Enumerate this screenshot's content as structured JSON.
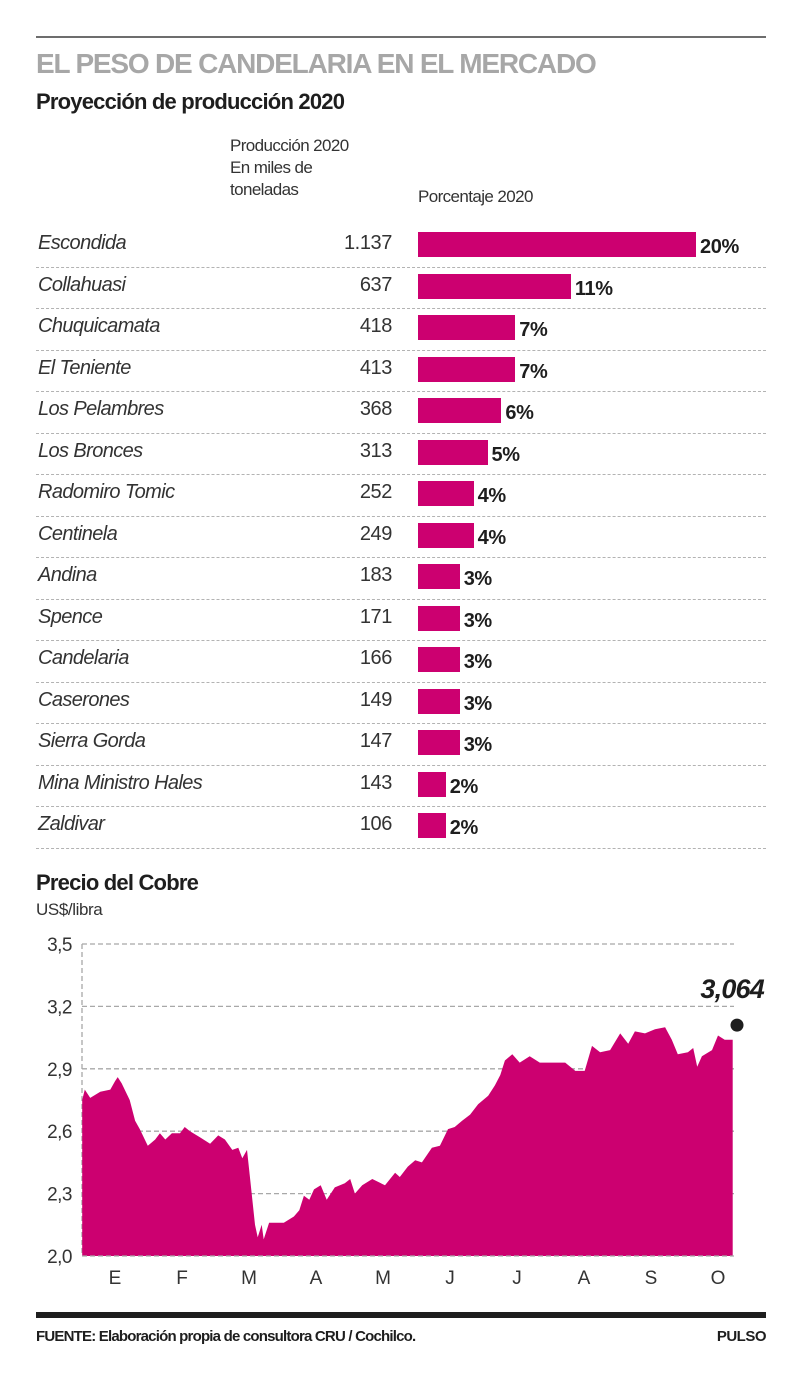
{
  "header": {
    "title": "EL PESO DE CANDELARIA EN EL MERCADO",
    "subtitle": "Proyección de producción 2020"
  },
  "chart_data": [
    {
      "type": "bar",
      "title": "Proyección de producción 2020",
      "column_headers": {
        "production": [
          "Producción 2020",
          "En miles de",
          "toneladas"
        ],
        "percentage": "Porcentaje 2020"
      },
      "categories": [
        "Escondida",
        "Collahuasi",
        "Chuquicamata",
        "El Teniente",
        "Los Pelambres",
        "Los Bronces",
        "Radomiro Tomic",
        "Centinela",
        "Andina",
        "Spence",
        "Candelaria",
        "Caserones",
        "Sierra Gorda",
        "Mina Ministro Hales",
        "Zaldivar"
      ],
      "production_labels": [
        "1.137",
        "637",
        "418",
        "413",
        "368",
        "313",
        "252",
        "249",
        "183",
        "171",
        "166",
        "149",
        "147",
        "143",
        "106"
      ],
      "production_values": [
        1137,
        637,
        418,
        413,
        368,
        313,
        252,
        249,
        183,
        171,
        166,
        149,
        147,
        143,
        106
      ],
      "percent_labels": [
        "20%",
        "11%",
        "7%",
        "7%",
        "6%",
        "5%",
        "4%",
        "4%",
        "3%",
        "3%",
        "3%",
        "3%",
        "3%",
        "2%",
        "2%"
      ],
      "values": [
        20,
        11,
        7,
        7,
        6,
        5,
        4,
        4,
        3,
        3,
        3,
        3,
        3,
        2,
        2
      ],
      "bar_color": "#cc0070"
    },
    {
      "type": "area",
      "title": "Precio del Cobre",
      "ylabel": "US$/libra",
      "ylim": [
        2.0,
        3.5
      ],
      "yticks": [
        2.0,
        2.3,
        2.6,
        2.9,
        3.2,
        3.5
      ],
      "ytick_labels": [
        "2,0",
        "2,3",
        "2,6",
        "2,9",
        "3,2",
        "3,5"
      ],
      "xtick_labels": [
        "E",
        "F",
        "M",
        "A",
        "M",
        "J",
        "J",
        "A",
        "S",
        "O"
      ],
      "xlim": [
        -0.49,
        9.22
      ],
      "grid": true,
      "fill_color": "#cc0070",
      "last_value_label": "3,064",
      "last_value": 3.064,
      "x": [
        -0.49,
        -0.45,
        -0.37,
        -0.22,
        -0.07,
        0,
        0.04,
        0.1,
        0.22,
        0.3,
        0.37,
        0.49,
        0.6,
        0.67,
        0.75,
        0.85,
        0.97,
        1.04,
        1.12,
        1.27,
        1.42,
        1.54,
        1.64,
        1.75,
        1.84,
        1.9,
        1.97,
        2.01,
        2.09,
        2.13,
        2.19,
        2.22,
        2.3,
        2.52,
        2.67,
        2.75,
        2.82,
        2.9,
        2.97,
        3.07,
        3.16,
        3.28,
        3.43,
        3.51,
        3.58,
        3.69,
        3.84,
        4.03,
        4.18,
        4.25,
        4.37,
        4.48,
        4.58,
        4.73,
        4.85,
        4.97,
        5.07,
        5.18,
        5.3,
        5.42,
        5.57,
        5.67,
        5.75,
        5.82,
        5.93,
        6.04,
        6.19,
        6.34,
        6.49,
        6.72,
        6.87,
        7.01,
        7.12,
        7.24,
        7.39,
        7.54,
        7.66,
        7.76,
        7.91,
        8.06,
        8.21,
        8.31,
        8.4,
        8.55,
        8.63,
        8.69,
        8.76,
        8.91,
        9,
        9.1,
        9.22
      ],
      "y": [
        2.75,
        2.8,
        2.76,
        2.79,
        2.8,
        2.84,
        2.86,
        2.83,
        2.75,
        2.65,
        2.61,
        2.53,
        2.56,
        2.59,
        2.56,
        2.59,
        2.59,
        2.62,
        2.6,
        2.57,
        2.54,
        2.58,
        2.56,
        2.51,
        2.52,
        2.47,
        2.51,
        2.39,
        2.15,
        2.09,
        2.15,
        2.08,
        2.16,
        2.16,
        2.19,
        2.22,
        2.29,
        2.27,
        2.32,
        2.34,
        2.27,
        2.33,
        2.35,
        2.37,
        2.3,
        2.34,
        2.37,
        2.34,
        2.4,
        2.38,
        2.43,
        2.46,
        2.45,
        2.52,
        2.53,
        2.61,
        2.62,
        2.65,
        2.68,
        2.73,
        2.77,
        2.82,
        2.87,
        2.94,
        2.97,
        2.93,
        2.96,
        2.93,
        2.93,
        2.93,
        2.89,
        2.89,
        3.01,
        2.98,
        2.99,
        3.07,
        3.02,
        3.08,
        3.07,
        3.09,
        3.1,
        3.04,
        2.97,
        2.98,
        3.0,
        2.91,
        2.96,
        2.99,
        3.06,
        3.04,
        3.04
      ]
    }
  ],
  "footer": {
    "source": "FUENTE: Elaboración propia de consultora CRU / Cochilco.",
    "brand": "PULSO"
  }
}
